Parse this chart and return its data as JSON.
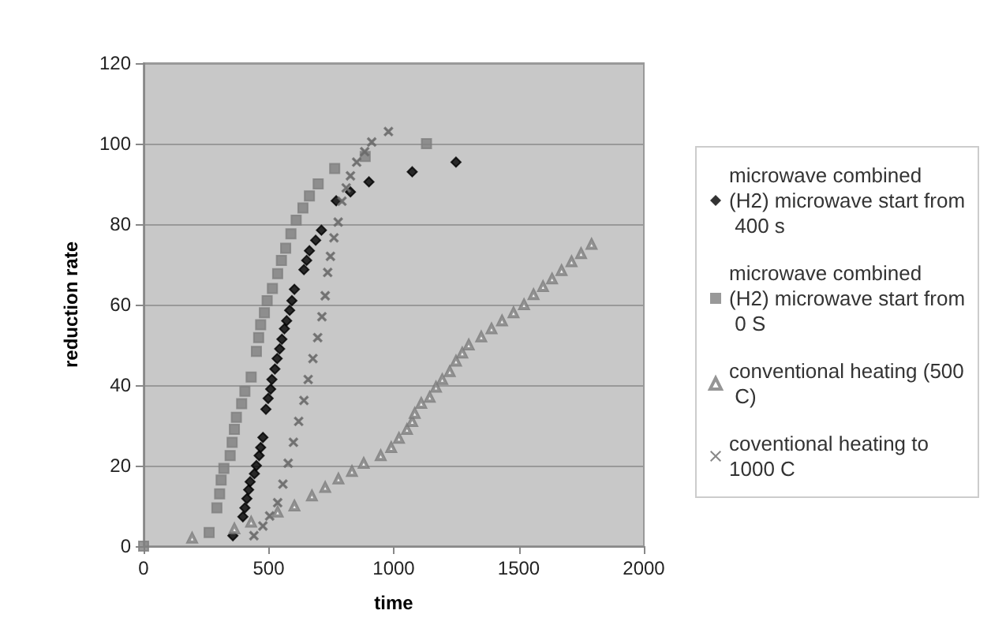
{
  "chart_data": {
    "type": "scatter",
    "xlabel": "time",
    "ylabel": "reduction rate",
    "xlim": [
      0,
      2000
    ],
    "xticks": [
      0,
      500,
      1000,
      1500,
      2000
    ],
    "ylim": [
      0,
      120
    ],
    "yticks": [
      0,
      20,
      40,
      60,
      80,
      100,
      120
    ],
    "grid": "y",
    "legend": "right",
    "series": [
      {
        "name": "microwave combined (H2) microwave start from 400 s",
        "color": "#000000",
        "marker": "diamond",
        "x": [
          357,
          397,
          405,
          413,
          420,
          426,
          443,
          451,
          462,
          468,
          477,
          489,
          498,
          508,
          513,
          525,
          534,
          544,
          553,
          563,
          572,
          584,
          593,
          603,
          641,
          652,
          663,
          688,
          711,
          770,
          827,
          901,
          1074,
          1249
        ],
        "values": [
          2.6,
          7.3,
          9.5,
          11.8,
          14,
          16,
          18,
          20,
          22.5,
          24.5,
          27,
          34,
          36.7,
          39,
          41.4,
          44,
          46.6,
          49,
          51.4,
          54,
          56,
          58.6,
          61,
          63.8,
          68.7,
          71,
          73.4,
          76,
          78.5,
          85.8,
          88,
          90.5,
          93,
          95.4
        ]
      },
      {
        "name": "microwave combined (H2) microwave start from 0 S",
        "color": "#808080",
        "marker": "square",
        "x": [
          0,
          262,
          293,
          304,
          310,
          321,
          346,
          354,
          363,
          371,
          392,
          405,
          430,
          451,
          460,
          468,
          483,
          494,
          515,
          536,
          551,
          568,
          589,
          610,
          637,
          663,
          698,
          764,
          886,
          1131
        ],
        "values": [
          0,
          3.4,
          9.5,
          13,
          16.4,
          19.3,
          22.5,
          25.8,
          29,
          32,
          35.4,
          38.5,
          42,
          48.4,
          51.8,
          55,
          58,
          61,
          64,
          67.7,
          71,
          74,
          77.6,
          81,
          84,
          87,
          90,
          93.8,
          96.8,
          100
        ]
      },
      {
        "name": "conventional heating (500 C)",
        "color": "#7a7a7a",
        "marker": "triangle",
        "x": [
          194,
          363,
          430,
          536,
          603,
          673,
          726,
          779,
          833,
          880,
          948,
          990,
          1021,
          1053,
          1074,
          1084,
          1110,
          1144,
          1169,
          1194,
          1224,
          1249,
          1274,
          1300,
          1350,
          1391,
          1433,
          1479,
          1521,
          1559,
          1597,
          1633,
          1671,
          1711,
          1749,
          1791
        ],
        "values": [
          2,
          4.3,
          6,
          8.5,
          10,
          12.5,
          14.6,
          16.7,
          18.6,
          20.6,
          22.5,
          24.5,
          26.8,
          29,
          31,
          33,
          35.5,
          37,
          39.5,
          41.4,
          43.4,
          46,
          48,
          50,
          52,
          54,
          56,
          58,
          60,
          62.5,
          64.5,
          66.4,
          68.5,
          70.7,
          72.7,
          75
        ]
      },
      {
        "name": "coventional heating to 1000 C",
        "color": "#6a6a6a",
        "marker": "cross",
        "x": [
          441,
          477,
          504,
          536,
          557,
          578,
          599,
          620,
          641,
          658,
          677,
          696,
          713,
          726,
          736,
          747,
          761,
          778,
          793,
          810,
          827,
          852,
          884,
          912,
          979
        ],
        "values": [
          2.6,
          5,
          7.5,
          10.8,
          15.4,
          20.6,
          25.8,
          31,
          36.2,
          41.4,
          46.6,
          51.8,
          57,
          62.2,
          68,
          72,
          76.6,
          80.5,
          85.7,
          89,
          92,
          95.4,
          98,
          100.4,
          103
        ]
      }
    ]
  }
}
